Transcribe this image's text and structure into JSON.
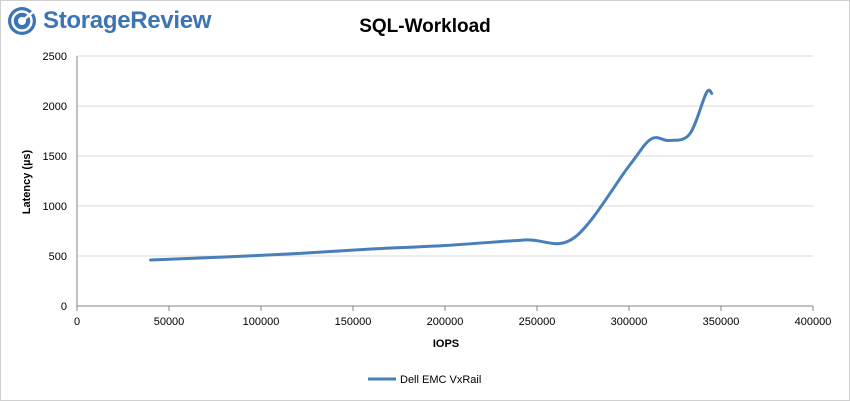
{
  "brand": {
    "name": "StorageReview",
    "color": "#3c74b5",
    "icon": "storagereview-logo-icon"
  },
  "chart_data": {
    "type": "line",
    "title": "SQL-Workload",
    "xlabel": "IOPS",
    "ylabel": "Latency (µs)",
    "xlim": [
      0,
      400000
    ],
    "ylim": [
      0,
      2500
    ],
    "x_ticks": [
      0,
      50000,
      100000,
      150000,
      200000,
      250000,
      300000,
      350000,
      400000
    ],
    "y_ticks": [
      0,
      500,
      1000,
      1500,
      2000,
      2500
    ],
    "grid": true,
    "legend_position": "bottom",
    "series": [
      {
        "name": "Dell EMC VxRail",
        "color": "#4a7ebb",
        "x": [
          40000,
          80000,
          120000,
          160000,
          200000,
          243000,
          270000,
          300000,
          312000,
          322000,
          333000,
          342000,
          345000
        ],
        "y": [
          460,
          490,
          525,
          570,
          605,
          660,
          680,
          1400,
          1670,
          1655,
          1720,
          2130,
          2125
        ]
      }
    ]
  }
}
